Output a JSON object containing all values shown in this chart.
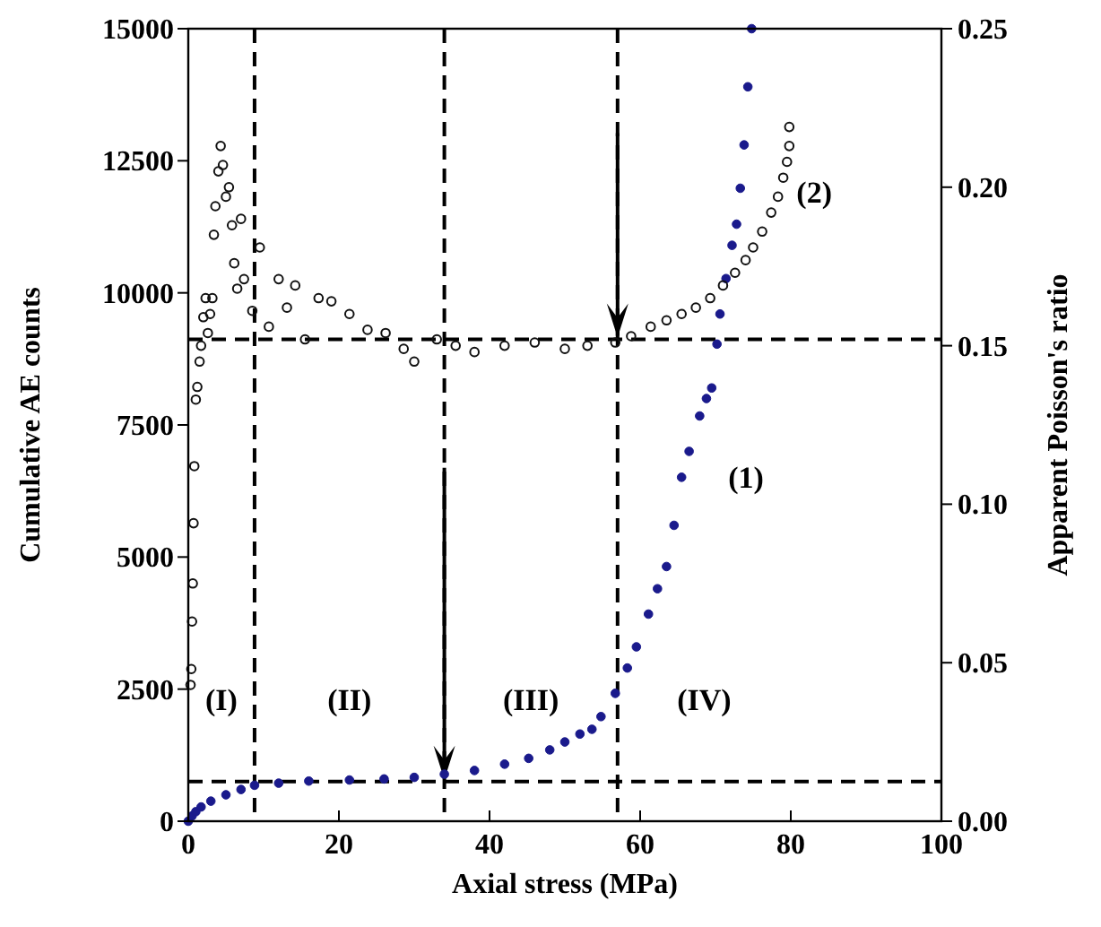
{
  "chart_data": {
    "type": "scatter",
    "xlabel": "Axial stress (MPa)",
    "ylabel": "Cumulative AE counts",
    "y2label": "Apparent Poisson's ratio",
    "xlim": [
      0,
      100
    ],
    "xticks": [
      0,
      20,
      40,
      60,
      80,
      100
    ],
    "ylim": [
      0,
      15000
    ],
    "yticks": [
      0,
      2500,
      5000,
      7500,
      10000,
      12500,
      15000
    ],
    "y2lim": [
      0,
      0.25
    ],
    "y2ticks": [
      {
        "value": 0,
        "label": "0.00"
      },
      0.05,
      {
        "value": 0.1,
        "label": "0.10"
      },
      0.15,
      {
        "value": 0.2,
        "label": "0.20"
      },
      0.25
    ],
    "grid": false,
    "marker": "circle",
    "series": [
      {
        "color": "#1a1a8c",
        "x": [
          0,
          0.5,
          1,
          1.7,
          3,
          5,
          7,
          8.8,
          12,
          16,
          21.4,
          26,
          30,
          34,
          38,
          42,
          45.2,
          48,
          50,
          52,
          53.6,
          54.8,
          56.7,
          58.3,
          59.5,
          61.1,
          62.3,
          63.5,
          64.5,
          65.5,
          66.5,
          67.9,
          68.8,
          69.5,
          70.2,
          70.6,
          71.4,
          72.2,
          72.8,
          73.3,
          73.8,
          74.3,
          74.8
        ],
        "values": [
          0,
          100,
          180,
          270,
          380,
          500,
          600,
          680,
          720,
          760,
          780,
          800,
          830,
          890,
          960,
          1080,
          1190,
          1350,
          1500,
          1650,
          1740,
          1980,
          2420,
          2900,
          3300,
          3920,
          4400,
          4820,
          5600,
          6510,
          7000,
          7670,
          8000,
          8200,
          9030,
          9600,
          10270,
          10900,
          11300,
          11980,
          12800,
          13900,
          15000
        ],
        "name": "(1)"
      },
      {
        "color": "#111111",
        "name": "(2)",
        "axis": "y2",
        "x": [
          0.3,
          0.4,
          0.5,
          0.6,
          0.7,
          0.8,
          1,
          1.2,
          1.5,
          1.7,
          2,
          2.3,
          2.6,
          2.9,
          3.2,
          3.4,
          3.6,
          4,
          4.3,
          4.6,
          5,
          5.4,
          5.8,
          6.1,
          6.5,
          7,
          7.4,
          8.5,
          9.5,
          10.7,
          12,
          13.1,
          14.2,
          15.5,
          17.3,
          19,
          21.4,
          23.8,
          26.2,
          28.6,
          30,
          33,
          35.5,
          38,
          42,
          46,
          50,
          53,
          56.7,
          58.8,
          61.4,
          63.5,
          65.5,
          67.4,
          69.3,
          71,
          72.6,
          74,
          75,
          76.2,
          77.4,
          78.3,
          79,
          79.5,
          79.8,
          79.8
        ],
        "values": [
          0.043,
          0.048,
          0.063,
          0.075,
          0.094,
          0.112,
          0.133,
          0.137,
          0.145,
          0.15,
          0.159,
          0.165,
          0.154,
          0.16,
          0.165,
          0.185,
          0.194,
          0.205,
          0.213,
          0.207,
          0.197,
          0.2,
          0.188,
          0.176,
          0.168,
          0.19,
          0.171,
          0.161,
          0.181,
          0.156,
          0.171,
          0.162,
          0.169,
          0.152,
          0.165,
          0.164,
          0.16,
          0.155,
          0.154,
          0.149,
          0.145,
          0.152,
          0.15,
          0.148,
          0.15,
          0.151,
          0.149,
          0.15,
          0.151,
          0.153,
          0.156,
          0.158,
          0.16,
          0.162,
          0.165,
          0.169,
          0.173,
          0.177,
          0.181,
          0.186,
          0.192,
          0.197,
          0.203,
          0.208,
          0.213,
          0.219
        ]
      }
    ],
    "ref_lines": [
      {
        "axis": "x",
        "value": 8.8,
        "line_style": "dashed",
        "color": "#000000"
      },
      {
        "axis": "x",
        "value": 34,
        "line_style": "dashed",
        "color": "#000000"
      },
      {
        "axis": "x",
        "value": 57,
        "line_style": "dashed",
        "color": "#000000"
      },
      {
        "axis": "y",
        "value": 750,
        "line_style": "dashed",
        "color": "#000000"
      },
      {
        "axis": "y2",
        "value": 0.152,
        "line_style": "dashed",
        "color": "#000000"
      }
    ],
    "annotations": [
      "(I)",
      "(II)",
      "(III)",
      "(IV)"
    ]
  }
}
